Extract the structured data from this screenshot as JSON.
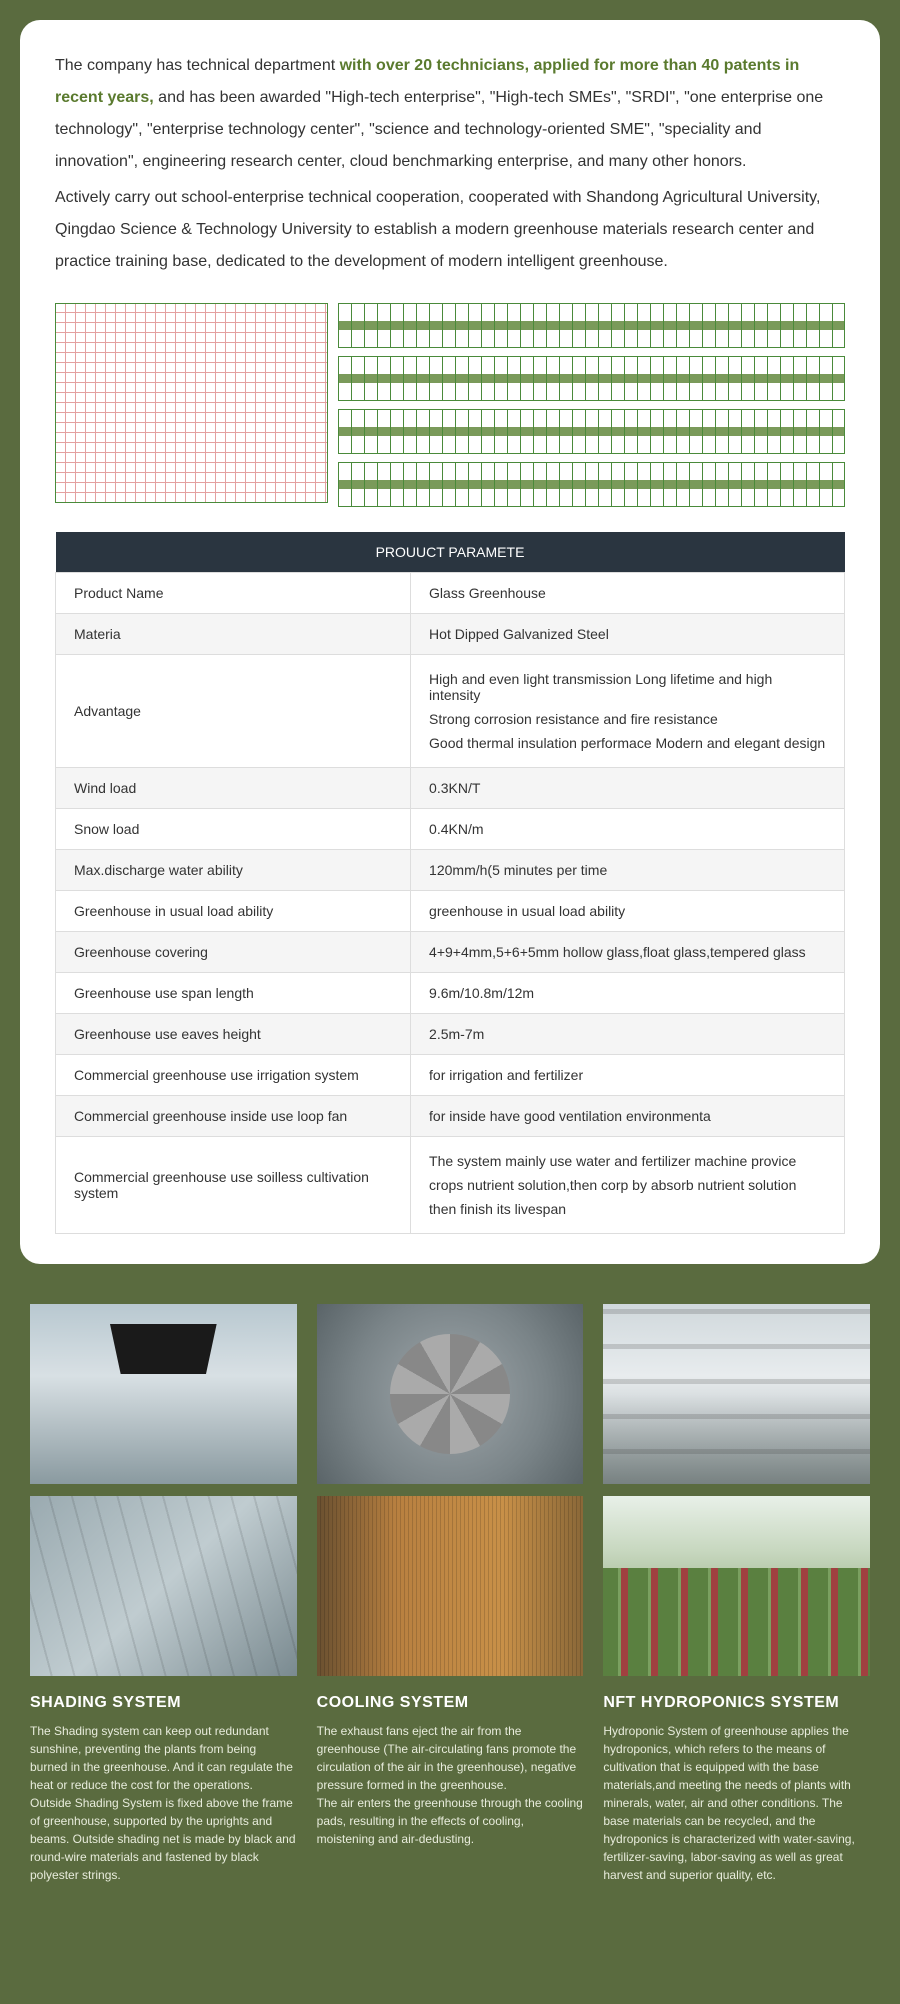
{
  "intro": {
    "p1_pre": "The company has technical department ",
    "p1_highlight": "with over 20 technicians, applied for more than 40 patents in recent years,",
    "p1_post": " and has been awarded \"High-tech enterprise\", \"High-tech SMEs\", \"SRDI\", \"one enterprise one technology\", \"enterprise technology center\", \"science and technology-oriented SME\", \"speciality and innovation\", engineering research center, cloud benchmarking enterprise, and many other honors.",
    "p2": "Actively carry out school-enterprise technical cooperation, cooperated with Shandong Agricultural University, Qingdao Science & Technology University to establish a modern greenhouse materials research center and practice training base, dedicated to the development of modern intelligent greenhouse."
  },
  "table": {
    "header": "PROUUCT PARAMETE",
    "rows": [
      {
        "label": "Product Name",
        "value": "Glass Greenhouse"
      },
      {
        "label": "Materia",
        "value": "Hot Dipped Galvanized Steel"
      },
      {
        "label": "Advantage",
        "lines": [
          "High and even light transmission Long lifetime and high intensity",
          "Strong corrosion resistance and fire resistance",
          "Good thermal insulation performace Modern and elegant design"
        ]
      },
      {
        "label": "Wind load",
        "value": "0.3KN/T"
      },
      {
        "label": "Snow load",
        "value": "0.4KN/m"
      },
      {
        "label": "Max.discharge water ability",
        "value": "120mm/h(5 minutes per time"
      },
      {
        "label": "Greenhouse in usual load ability",
        "value": "greenhouse in usual load ability"
      },
      {
        "label": "Greenhouse covering",
        "value": "4+9+4mm,5+6+5mm hollow glass,float glass,tempered glass"
      },
      {
        "label": "Greenhouse use span length",
        "value": "9.6m/10.8m/12m"
      },
      {
        "label": "Greenhouse use eaves height",
        "value": "2.5m-7m"
      },
      {
        "label": "Commercial greenhouse use irrigation system",
        "value": "for irrigation and fertilizer"
      },
      {
        "label": "Commercial greenhouse inside use loop fan",
        "value": "for inside have good ventilation environmenta"
      },
      {
        "label": "Commercial greenhouse use soilless cultivation system",
        "lines": [
          "The system mainly use water and fertilizer machine provice",
          "crops nutrient solution,then corp by absorb nutrient solution",
          "then finish its livespan"
        ]
      }
    ]
  },
  "systems": [
    {
      "title": "SHADING SYSTEM",
      "desc": "The Shading system can keep out redundant sunshine, preventing the plants from being burned in the greenhouse. And it can regulate the heat or reduce the cost for the operations.\nOutside Shading System is fixed above the frame of greenhouse, supported by the uprights and beams. Outside shading net is made by black and round-wire materials and fastened by black polyester strings."
    },
    {
      "title": "COOLING SYSTEM",
      "desc": "The exhaust fans eject the air from the greenhouse (The air-circulating fans promote the circulation of the air in the greenhouse), negative pressure formed in the greenhouse.\nThe air enters the greenhouse through the cooling pads, resulting in the effects of cooling, moistening and air-dedusting."
    },
    {
      "title": "NFT HYDROPONICS SYSTEM",
      "desc": "Hydroponic System of greenhouse applies the hydroponics, which refers to the means of cultivation that is equipped with the base materials,and meeting the needs of plants with minerals, water, air and other conditions. The base materials can be recycled, and the hydroponics is characterized with water-saving, fertilizer-saving, labor-saving as well as great harvest and superior quality, etc."
    }
  ]
}
